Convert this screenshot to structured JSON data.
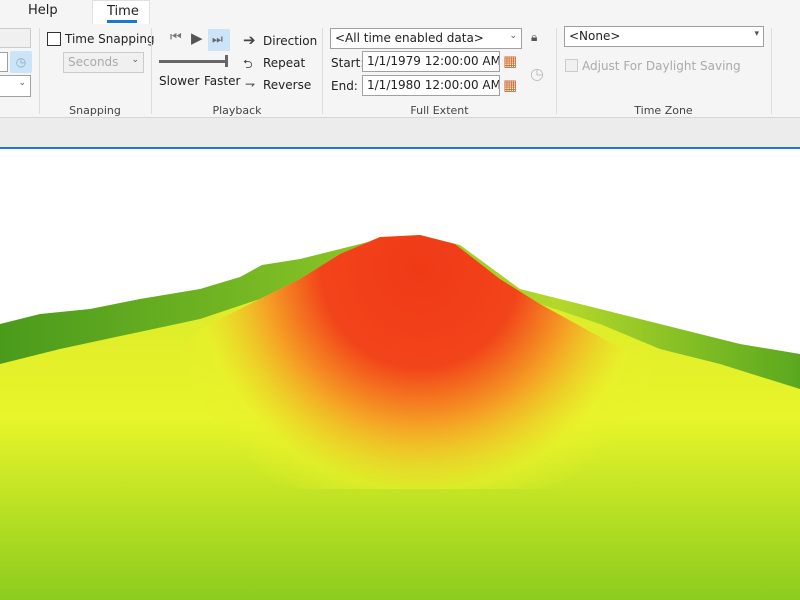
{
  "tabs": {
    "help": "Help",
    "time": "Time"
  },
  "snapping": {
    "checkbox_label": "Time Snapping",
    "unit": "Seconds",
    "group": "Snapping"
  },
  "playback": {
    "slower": "Slower",
    "faster": "Faster",
    "direction": "Direction",
    "repeat": "Repeat",
    "reverse": "Reverse",
    "group": "Playback"
  },
  "full_extent": {
    "source": "<All time enabled data>",
    "start_label": "Start:",
    "start": "1/1/1979 12:00:00 AM",
    "end_label": "End:",
    "end": "1/1/1980 12:00:00 AM",
    "group": "Full Extent"
  },
  "time_zone": {
    "value": "<None>",
    "daylight": "Adjust For Daylight Saving",
    "group": "Time Zone"
  },
  "colors": {
    "accent": "#1979ca",
    "peak": "#f03a17",
    "mid": "#e8f52a",
    "low": "#3f9a1c"
  }
}
